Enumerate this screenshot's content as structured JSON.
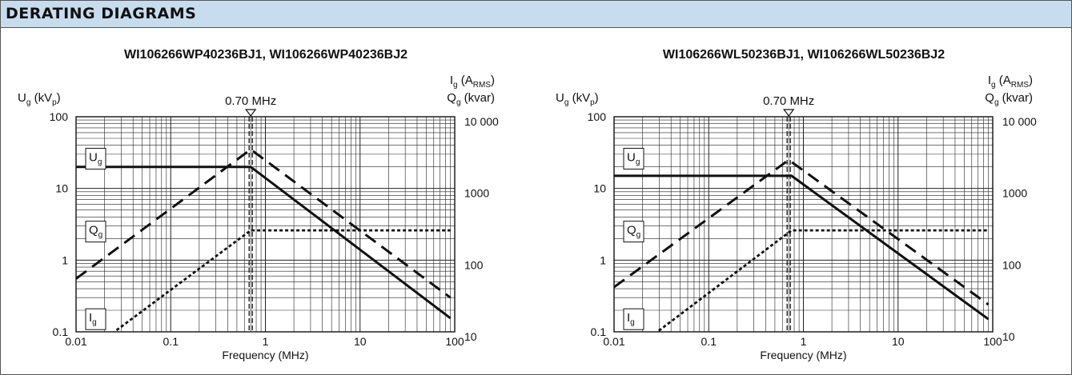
{
  "header": {
    "title": "DERATING DIAGRAMS"
  },
  "chart_data": [
    {
      "type": "line",
      "title": "WI106266WP40236BJ1, WI106266WP40236BJ2",
      "xlabel": "Frequency (MHz)",
      "xscale": "log",
      "xlim": [
        0.01,
        100
      ],
      "ylim_left": [
        0.1,
        100
      ],
      "ylim_right": [
        10,
        10000
      ],
      "left_ticks": [
        "100",
        "10",
        "1",
        "0.1"
      ],
      "right_ticks": [
        "10 000",
        "1000",
        "100",
        "10"
      ],
      "x_ticks": [
        "0.01",
        "0.1",
        "1",
        "10",
        "100"
      ],
      "ylabel_left": {
        "text": "U",
        "sub": "g",
        "unit_a": " (kV",
        "unit_sub": "p",
        "unit_b": ")"
      },
      "ylabel_right_1": {
        "text": "I",
        "sub": "g",
        "unit_a": " (A",
        "unit_sub": "RMS",
        "unit_b": ")"
      },
      "ylabel_right_2": {
        "text": "Q",
        "sub": "g",
        "unit_a": " (kvar)"
      },
      "marker": {
        "x": 0.7,
        "label": "0.70 MHz"
      },
      "series": [
        {
          "name": "U",
          "sub": "g",
          "style": "solid",
          "axis": "left",
          "x": [
            0.01,
            0.7,
            90
          ],
          "y": [
            20,
            20,
            0.155
          ],
          "label_y": 26
        },
        {
          "name": "Q",
          "sub": "g",
          "style": "dash",
          "axis": "right",
          "x": [
            0.01,
            0.7,
            90
          ],
          "y": [
            55,
            3500,
            30
          ],
          "label_y": 2.5
        },
        {
          "name": "I",
          "sub": "g",
          "style": "dot",
          "axis": "right",
          "x": [
            0.01,
            0.7,
            90
          ],
          "y": [
            4,
            260,
            260
          ],
          "label_y": 0.15
        }
      ]
    },
    {
      "type": "line",
      "title": "WI106266WL50236BJ1, WI106266WL50236BJ2",
      "xlabel": "Frequency (MHz)",
      "xscale": "log",
      "xlim": [
        0.01,
        100
      ],
      "ylim_left": [
        0.1,
        100
      ],
      "ylim_right": [
        10,
        10000
      ],
      "left_ticks": [
        "100",
        "10",
        "1",
        "0.1"
      ],
      "right_ticks": [
        "10 000",
        "1000",
        "100",
        "10"
      ],
      "x_ticks": [
        "0.01",
        "0.1",
        "1",
        "10",
        "100"
      ],
      "ylabel_left": {
        "text": "U",
        "sub": "g",
        "unit_a": " (kV",
        "unit_sub": "p",
        "unit_b": ")"
      },
      "ylabel_right_1": {
        "text": "I",
        "sub": "g",
        "unit_a": " (A",
        "unit_sub": "RMS",
        "unit_b": ")"
      },
      "ylabel_right_2": {
        "text": "Q",
        "sub": "g",
        "unit_a": " (kvar)"
      },
      "marker": {
        "x": 0.7,
        "label": "0.70 MHz"
      },
      "series": [
        {
          "name": "U",
          "sub": "g",
          "style": "solid",
          "axis": "left",
          "x": [
            0.01,
            0.75,
            90
          ],
          "y": [
            15,
            15,
            0.15
          ],
          "label_y": 26
        },
        {
          "name": "Q",
          "sub": "g",
          "style": "dash",
          "axis": "right",
          "x": [
            0.01,
            0.7,
            90
          ],
          "y": [
            42,
            2500,
            24
          ],
          "label_y": 2.5
        },
        {
          "name": "I",
          "sub": "g",
          "style": "dot",
          "axis": "right",
          "x": [
            0.01,
            0.75,
            90
          ],
          "y": [
            3.5,
            260,
            260
          ],
          "label_y": 0.15
        }
      ]
    }
  ]
}
